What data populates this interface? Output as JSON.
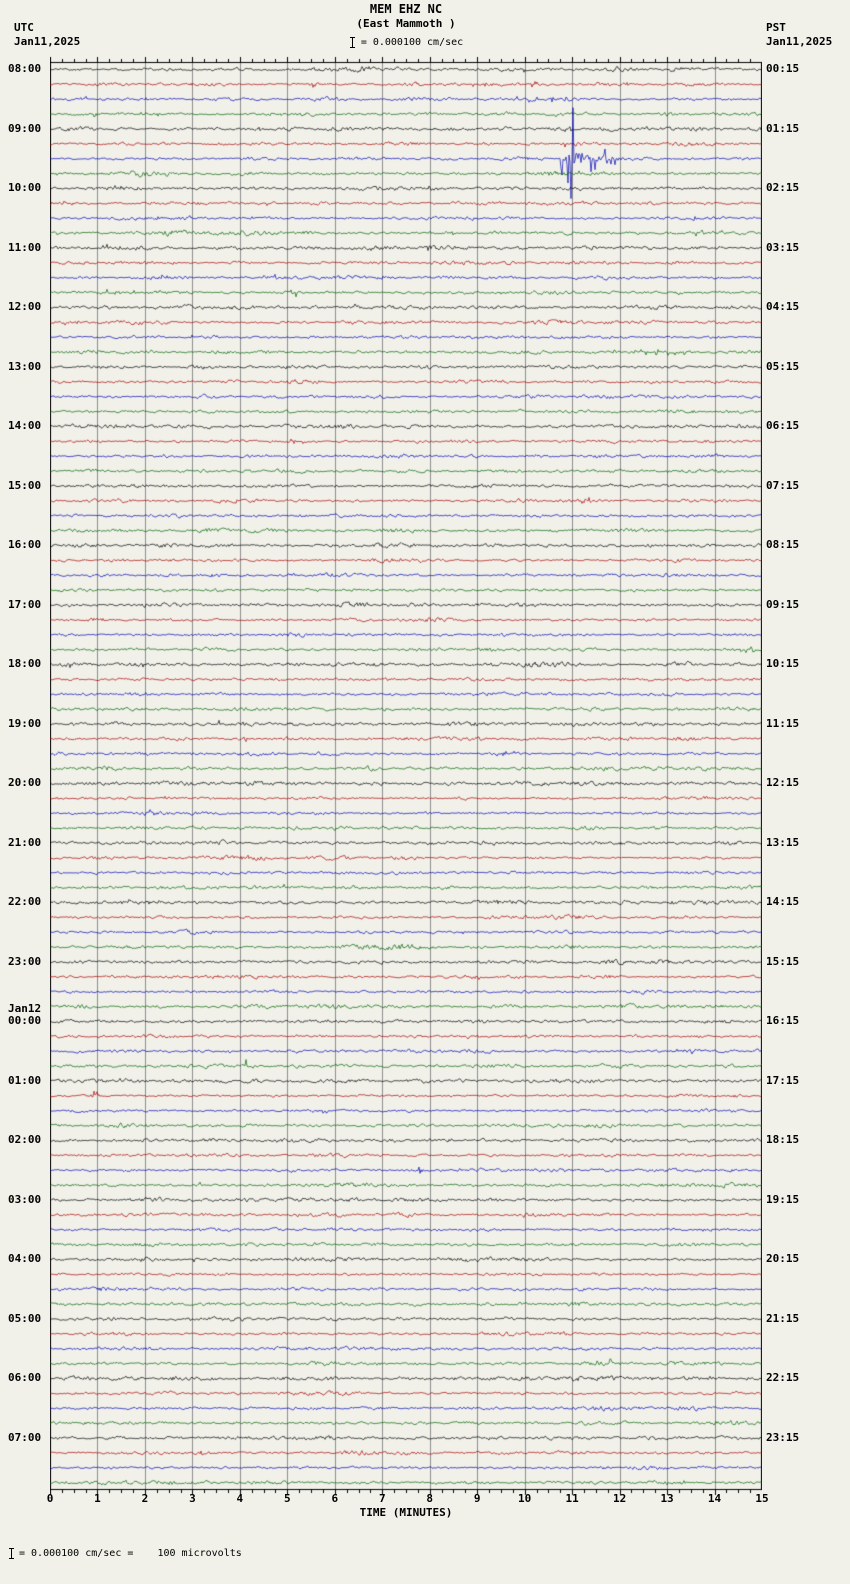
{
  "header": {
    "station_line": "MEM EHZ NC",
    "location_line": "(East Mammoth )",
    "scale_text": "= 0.000100 cm/sec",
    "left_tz": "UTC",
    "left_date": "Jan11,2025",
    "right_tz": "PST",
    "right_date": "Jan11,2025"
  },
  "x_axis": {
    "label": "TIME (MINUTES)",
    "ticks": [
      "0",
      "1",
      "2",
      "3",
      "4",
      "5",
      "6",
      "7",
      "8",
      "9",
      "10",
      "11",
      "12",
      "13",
      "14",
      "15"
    ]
  },
  "footer": {
    "scale_note": "= 0.000100 cm/sec =    100 microvolts"
  },
  "chart_data": {
    "type": "line",
    "kind": "helicorder-seismogram",
    "station": "MEM EHZ NC (East Mammoth)",
    "minutes_per_line": 15,
    "lines_per_hour": 4,
    "total_rows": 96,
    "x_range_minutes": [
      0,
      15
    ],
    "trace_colors": [
      "#000000",
      "#aa0000",
      "#0000b4",
      "#006400"
    ],
    "grid_color": "#8c8c8c",
    "border_color": "#000000",
    "tick_color": "#000000",
    "utc_hour_labels": [
      "08:00",
      "09:00",
      "10:00",
      "11:00",
      "12:00",
      "13:00",
      "14:00",
      "15:00",
      "16:00",
      "17:00",
      "18:00",
      "19:00",
      "20:00",
      "21:00",
      "22:00",
      "23:00",
      "00:00",
      "01:00",
      "02:00",
      "03:00",
      "04:00",
      "05:00",
      "06:00",
      "07:00"
    ],
    "pst_hour_labels": [
      "00:15",
      "01:15",
      "02:15",
      "03:15",
      "04:15",
      "05:15",
      "06:15",
      "07:15",
      "08:15",
      "09:15",
      "10:15",
      "11:15",
      "12:15",
      "13:15",
      "14:15",
      "15:15",
      "16:15",
      "17:15",
      "18:15",
      "19:15",
      "20:15",
      "21:15",
      "22:15",
      "23:15"
    ],
    "date_change": {
      "index": 16,
      "label": "Jan12"
    },
    "noise": {
      "base_amp": [
        1.3,
        1.05,
        1.05,
        1.15
      ],
      "smooth": 0.5
    },
    "events_format": "[row_index, center_minute, amplitude_px, sigma_minutes]",
    "events": [
      [
        0,
        9.8,
        3,
        0.25
      ],
      [
        0,
        6.5,
        2.5,
        0.2
      ],
      [
        1,
        5.6,
        3,
        0.2
      ],
      [
        1,
        9.3,
        3.5,
        0.45
      ],
      [
        1,
        10.2,
        3,
        0.2
      ],
      [
        1,
        12.1,
        2.5,
        0.2
      ],
      [
        2,
        9.8,
        2.5,
        0.3
      ],
      [
        2,
        10.6,
        3,
        0.35
      ],
      [
        2,
        0.7,
        2.5,
        0.2
      ],
      [
        3,
        1.0,
        2.2,
        0.5
      ],
      [
        3,
        2.5,
        2.2,
        0.5
      ],
      [
        3,
        5.0,
        2,
        0.4
      ],
      [
        4,
        4.2,
        3,
        0.2
      ],
      [
        4,
        10.7,
        3.5,
        0.3
      ],
      [
        4,
        0.5,
        2.5,
        0.3
      ],
      [
        5,
        11.2,
        9,
        0.12
      ],
      [
        5,
        10.9,
        4,
        0.1
      ],
      [
        6,
        10.85,
        30,
        0.06
      ],
      [
        6,
        11.0,
        55,
        0.05
      ],
      [
        6,
        11.15,
        45,
        0.06
      ],
      [
        6,
        11.45,
        25,
        0.12
      ],
      [
        6,
        11.8,
        8,
        0.25
      ],
      [
        7,
        0.5,
        2,
        0.4
      ],
      [
        7,
        11.0,
        2.5,
        0.3
      ],
      [
        8,
        1.8,
        2.5,
        0.6
      ],
      [
        8,
        8.1,
        2.5,
        0.3
      ],
      [
        9,
        4.6,
        2.8,
        0.25
      ],
      [
        9,
        0.3,
        2.2,
        0.2
      ],
      [
        10,
        4.0,
        3,
        0.2
      ],
      [
        10,
        13.6,
        2.5,
        0.25
      ],
      [
        10,
        2.3,
        2.5,
        0.2
      ],
      [
        11,
        13.9,
        4.5,
        0.4
      ],
      [
        11,
        8.2,
        2.5,
        0.25
      ],
      [
        11,
        0.3,
        2.5,
        0.3
      ],
      [
        12,
        8.0,
        4,
        0.15
      ],
      [
        12,
        11.3,
        2.5,
        0.2
      ],
      [
        12,
        1.2,
        2.2,
        0.4
      ],
      [
        13,
        11.9,
        3,
        0.2
      ],
      [
        13,
        2.0,
        2.2,
        0.5
      ],
      [
        14,
        2.3,
        4,
        0.15
      ],
      [
        14,
        4.7,
        3,
        0.2
      ],
      [
        14,
        7.0,
        2.5,
        0.3
      ],
      [
        15,
        5.2,
        5,
        0.12
      ],
      [
        15,
        1.5,
        2.5,
        0.8
      ],
      [
        15,
        9.0,
        2,
        0.5
      ],
      [
        16,
        11.2,
        3,
        0.2
      ],
      [
        16,
        6.5,
        2.5,
        0.3
      ],
      [
        17,
        0.4,
        2,
        0.3
      ],
      [
        18,
        3.0,
        2,
        0.3
      ],
      [
        19,
        12.5,
        3,
        0.5
      ],
      [
        19,
        13.3,
        3,
        0.3
      ],
      [
        21,
        5.2,
        3,
        0.15
      ],
      [
        24,
        1.0,
        2.2,
        0.6
      ],
      [
        25,
        5.2,
        4,
        0.12
      ],
      [
        29,
        4.1,
        2.8,
        0.2
      ],
      [
        29,
        11.4,
        4,
        0.25
      ],
      [
        30,
        14.6,
        3,
        0.2
      ],
      [
        34,
        3.5,
        3,
        0.2
      ],
      [
        37,
        1.0,
        2.5,
        0.2
      ],
      [
        39,
        14.6,
        3,
        0.25
      ],
      [
        40,
        0.6,
        2.5,
        0.4
      ],
      [
        40,
        1.8,
        2.5,
        0.3
      ],
      [
        43,
        0.65,
        5,
        0.12
      ],
      [
        44,
        3.6,
        3,
        0.15
      ],
      [
        45,
        4.15,
        5,
        0.1
      ],
      [
        46,
        1.5,
        2.8,
        0.2
      ],
      [
        46,
        9.6,
        2.8,
        0.2
      ],
      [
        47,
        0.8,
        3,
        0.2
      ],
      [
        49,
        2.4,
        3,
        0.15
      ],
      [
        50,
        2.1,
        2.5,
        0.15
      ],
      [
        52,
        11.7,
        4,
        0.15
      ],
      [
        52,
        9.5,
        2.5,
        0.2
      ],
      [
        54,
        1.05,
        9,
        0.05
      ],
      [
        55,
        5.0,
        3,
        0.2
      ],
      [
        56,
        2.0,
        2.2,
        0.8
      ],
      [
        56,
        9.3,
        2.5,
        0.3
      ],
      [
        58,
        8.85,
        3,
        0.12
      ],
      [
        61,
        8.9,
        4,
        0.15
      ],
      [
        64,
        5.9,
        4,
        0.12
      ],
      [
        65,
        8.85,
        3.5,
        0.12
      ],
      [
        66,
        13.35,
        4,
        0.15
      ],
      [
        67,
        4.15,
        9,
        0.06
      ],
      [
        68,
        1.5,
        3,
        0.2
      ],
      [
        69,
        0.95,
        5,
        0.08
      ],
      [
        70,
        5.8,
        3,
        0.15
      ],
      [
        74,
        7.75,
        5,
        0.08
      ],
      [
        75,
        3.2,
        4,
        0.15
      ],
      [
        78,
        13.7,
        3,
        0.2
      ],
      [
        80,
        3.0,
        3,
        0.2
      ],
      [
        87,
        11.7,
        5,
        0.18
      ],
      [
        89,
        3.9,
        3,
        0.15
      ],
      [
        90,
        13.3,
        3,
        0.15
      ],
      [
        92,
        5.9,
        3.5,
        0.12
      ],
      [
        93,
        3.2,
        4,
        0.1
      ],
      [
        95,
        13.0,
        2.2,
        0.6
      ]
    ]
  }
}
